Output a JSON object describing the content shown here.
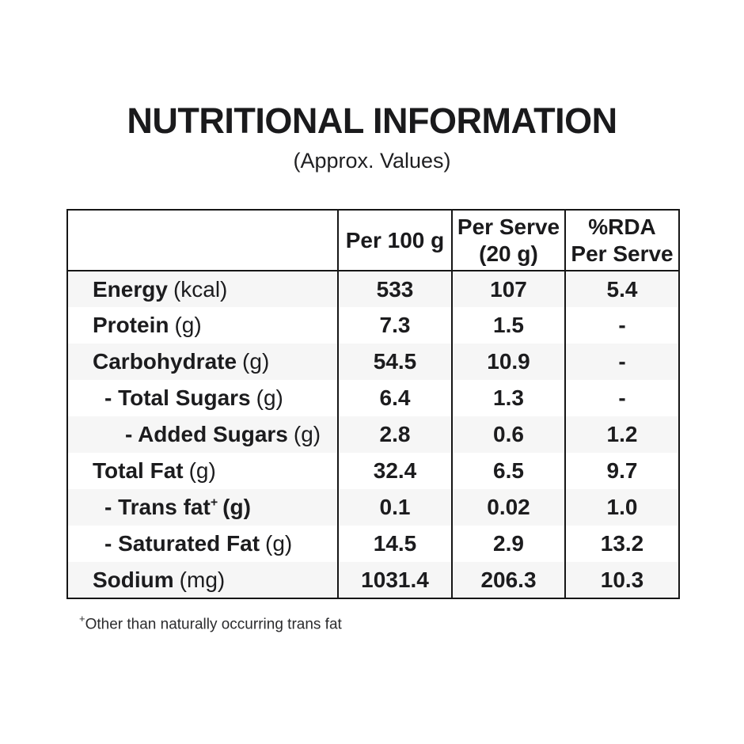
{
  "page": {
    "title": "NUTRITIONAL INFORMATION",
    "subtitle": "(Approx. Values)"
  },
  "table": {
    "header": {
      "label_col": "",
      "per_100g": "Per 100 g",
      "per_serve": [
        "Per Serve",
        "(20 g)"
      ],
      "rda": [
        "%RDA",
        "Per Serve"
      ]
    },
    "rows": [
      {
        "name": "Energy",
        "unit": "(kcal)",
        "indent": 0,
        "shaded": true,
        "per_100g": "533",
        "per_serve": "107",
        "rda": "5.4"
      },
      {
        "name": "Protein",
        "unit": "(g)",
        "indent": 0,
        "shaded": false,
        "per_100g": "7.3",
        "per_serve": "1.5",
        "rda": "-"
      },
      {
        "name": "Carbohydrate",
        "unit": "(g)",
        "indent": 0,
        "shaded": true,
        "per_100g": "54.5",
        "per_serve": "10.9",
        "rda": "-"
      },
      {
        "name": "- Total Sugars",
        "unit": "(g)",
        "indent": 1,
        "shaded": false,
        "per_100g": "6.4",
        "per_serve": "1.3",
        "rda": "-"
      },
      {
        "name": "- Added Sugars",
        "unit": "(g)",
        "indent": 2,
        "shaded": true,
        "per_100g": "2.8",
        "per_serve": "0.6",
        "rda": "1.2"
      },
      {
        "name": "Total Fat",
        "unit": "(g)",
        "indent": 0,
        "shaded": false,
        "per_100g": "32.4",
        "per_serve": "6.5",
        "rda": "9.7"
      },
      {
        "name": "- Trans fat",
        "sup": "+",
        "unit": "(g)",
        "unit_bold": true,
        "indent": 1,
        "shaded": true,
        "per_100g": "0.1",
        "per_serve": "0.02",
        "rda": "1.0"
      },
      {
        "name": "- Saturated Fat",
        "unit": "(g)",
        "indent": 1,
        "shaded": false,
        "per_100g": "14.5",
        "per_serve": "2.9",
        "rda": "13.2"
      },
      {
        "name": "Sodium",
        "unit": "(mg)",
        "indent": 0,
        "shaded": true,
        "per_100g": "1031.4",
        "per_serve": "206.3",
        "rda": "10.3"
      }
    ]
  },
  "footnote": {
    "marker": "+",
    "text": "Other than naturally occurring trans fat"
  },
  "colors": {
    "text": "#1c1c1e",
    "border": "#161616",
    "row_shade": "#f6f6f6",
    "background": "#ffffff"
  }
}
